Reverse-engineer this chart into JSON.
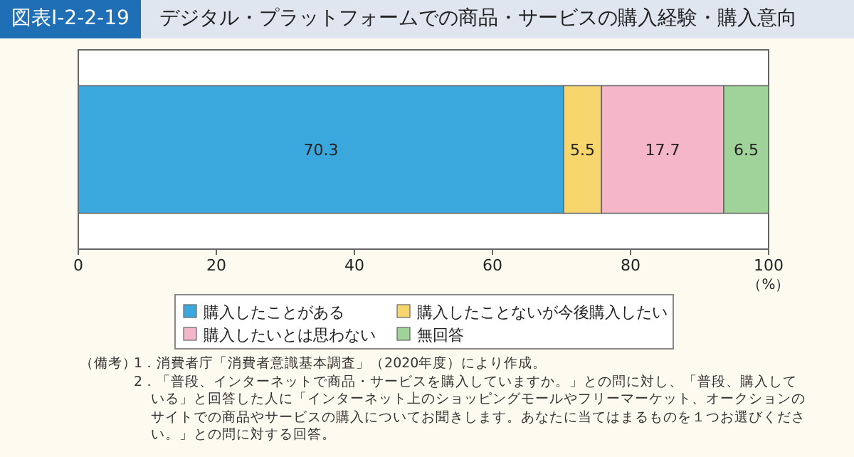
{
  "chart_data": {
    "type": "bar",
    "orientation": "horizontal",
    "stacked": true,
    "title": "図表Ⅰ-2-2-19",
    "subtitle": "デジタル・プラットフォームでの商品・サービスの購入経験・購入意向",
    "categories": [
      null
    ],
    "series": [
      {
        "name": "購入したことがある",
        "color": "#3aa7dd",
        "values": [
          70.3
        ]
      },
      {
        "name": "購入したことないが今後購入したい",
        "color": "#f8d66e",
        "values": [
          5.5
        ]
      },
      {
        "name": "購入したいとは思わない",
        "color": "#f4b6c8",
        "values": [
          17.7
        ]
      },
      {
        "name": "無回答",
        "color": "#9fd39a",
        "values": [
          6.5
        ]
      }
    ],
    "xlim": [
      0,
      100
    ],
    "xticks": [
      0,
      20,
      40,
      60,
      80,
      100
    ],
    "xlabel": "（%）",
    "data_labels": true,
    "grid": false,
    "legend": "bottom",
    "annotations": [
      "（備考）",
      "1．消費者庁「消費者意識基本調査」（2020年度）により作成。",
      "2．「普段、インターネットで商品・サービスを購入していますか。」との問に対し、「普段、購入している」と回答した人に「インターネット上のショッピングモールやフリーマーケット、オークションのサイトでの商品やサービスの購入についてお聞きします。あなたに当てはまるものを１つお選びください。」との問に対する回答。"
    ]
  }
}
